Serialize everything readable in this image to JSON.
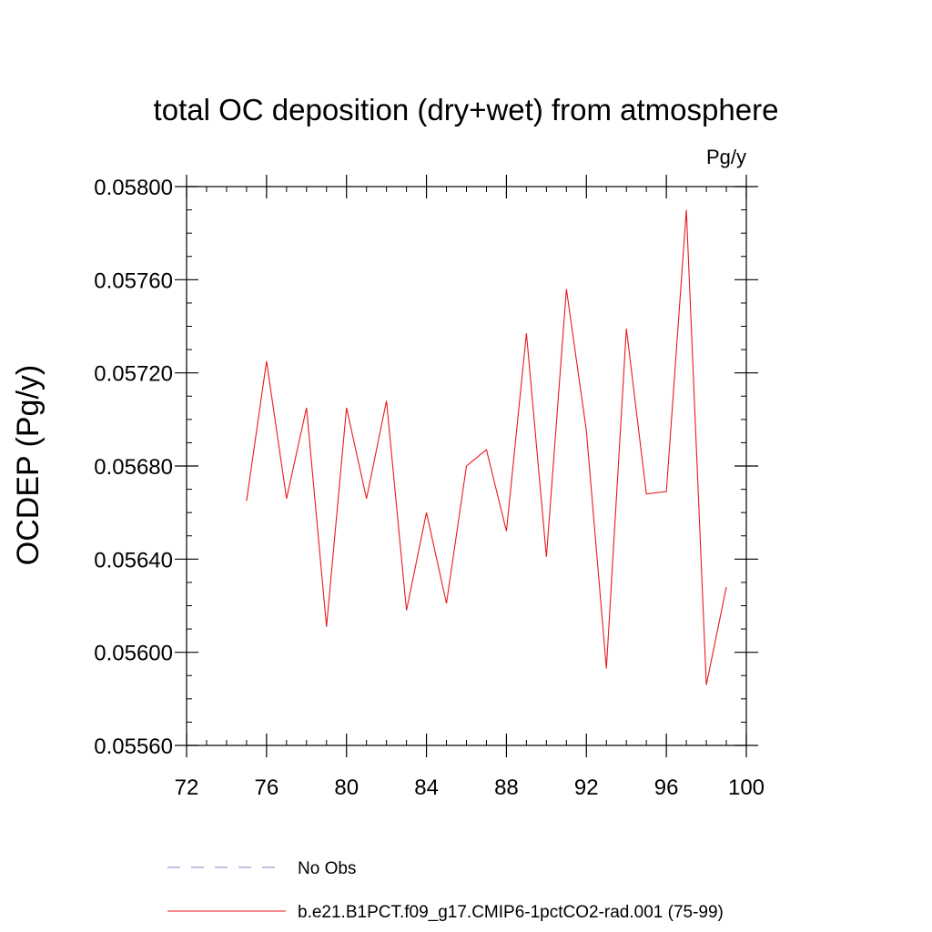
{
  "chart_data": {
    "type": "line",
    "title": "total OC deposition (dry+wet) from atmosphere",
    "units_label": "Pg/y",
    "xlabel": "",
    "ylabel": "OCDEP  (Pg/y)",
    "xlim": [
      72,
      100
    ],
    "ylim": [
      0.0556,
      0.058
    ],
    "x_ticks": [
      72,
      76,
      80,
      84,
      88,
      92,
      96,
      100
    ],
    "x_tick_labels": [
      "72",
      "76",
      "80",
      "84",
      "88",
      "92",
      "96",
      "100"
    ],
    "y_ticks": [
      0.0556,
      0.056,
      0.0564,
      0.0568,
      0.0572,
      0.0576,
      0.058
    ],
    "y_tick_labels": [
      "0.05560",
      "0.05600",
      "0.05640",
      "0.05680",
      "0.05720",
      "0.05760",
      "0.05800"
    ],
    "x_minor_step": 1,
    "y_minor_step": 0.0001,
    "grid": false,
    "legend_position": "bottom",
    "series": [
      {
        "name": "b.e21.B1PCT.f09_g17.CMIP6-1pctCO2-rad.001 (75-99)",
        "color": "#e8191e",
        "line_style": "solid",
        "x": [
          75,
          76,
          77,
          78,
          79,
          80,
          81,
          82,
          83,
          84,
          85,
          86,
          87,
          88,
          89,
          90,
          91,
          92,
          93,
          94,
          95,
          96,
          97,
          98,
          99
        ],
        "y": [
          0.05665,
          0.05725,
          0.05666,
          0.05705,
          0.05611,
          0.05705,
          0.05666,
          0.05708,
          0.05618,
          0.0566,
          0.05621,
          0.0568,
          0.05687,
          0.05652,
          0.05737,
          0.05641,
          0.05756,
          0.05695,
          0.05593,
          0.05739,
          0.05668,
          0.05669,
          0.0579,
          0.05586,
          0.05628
        ]
      }
    ],
    "legend": [
      {
        "label": "No Obs",
        "color": "#8080c0",
        "line_style": "dashed"
      },
      {
        "label": "b.e21.B1PCT.f09_g17.CMIP6-1pctCO2-rad.001 (75-99)",
        "color": "#e8191e",
        "line_style": "solid"
      }
    ]
  }
}
